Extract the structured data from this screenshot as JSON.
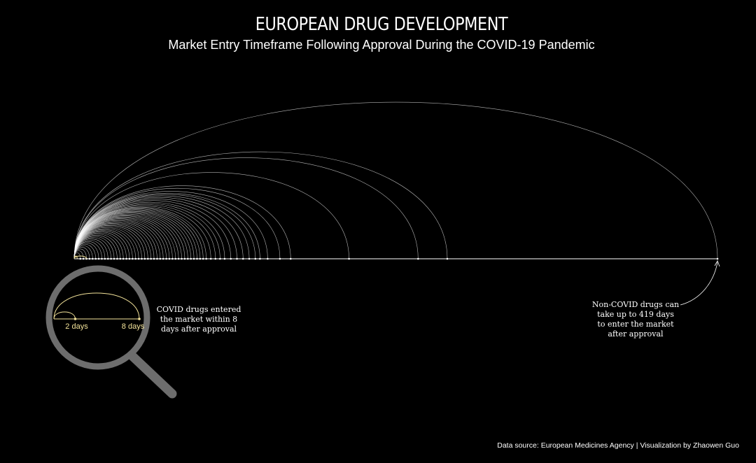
{
  "chart_data": {
    "type": "arc",
    "title": "EUROPEAN DRUG DEVELOPMENT",
    "subtitle": "Market Entry Timeframe Following Approval During the COVID-19 Pandemic",
    "xlabel": "",
    "ylabel": "",
    "xlim": [
      0,
      419
    ],
    "unit": "days",
    "grid": false,
    "legend": "none",
    "series": [
      {
        "group": "non-covid",
        "color": "#ffffff",
        "days": [
          419,
          243,
          224,
          179,
          141,
          134,
          126,
          121,
          118,
          114,
          110,
          106,
          102,
          98,
          95,
          92,
          89,
          86,
          84,
          82,
          80,
          78,
          76,
          74,
          72,
          70,
          68,
          66,
          64,
          62,
          60,
          58,
          56,
          54,
          52,
          50,
          48,
          46,
          44,
          42,
          40,
          38,
          36,
          34,
          32,
          30,
          28,
          26,
          24,
          22,
          20,
          18,
          16,
          14,
          12,
          10,
          8,
          6,
          4
        ]
      },
      {
        "group": "covid",
        "color": "#f3e39a",
        "days": [
          2,
          8
        ]
      }
    ],
    "inset_labels": [
      {
        "day": 2,
        "text": "2 days"
      },
      {
        "day": 8,
        "text": "8 days"
      }
    ]
  },
  "annotations": {
    "covid_note": [
      "COVID drugs entered",
      "the market within 8",
      "days after approval"
    ],
    "noncovid_note": [
      "Non-COVID drugs can",
      "take up to 419 days",
      "to enter the market",
      "after approval"
    ]
  },
  "caption": "Data source: European Medicines Agency | Visualization by Zhaowen Guo",
  "colors": {
    "background": "#000000",
    "arc": "#ffffff",
    "covid": "#f3e39a",
    "magnifier": "#6d6d6d"
  }
}
